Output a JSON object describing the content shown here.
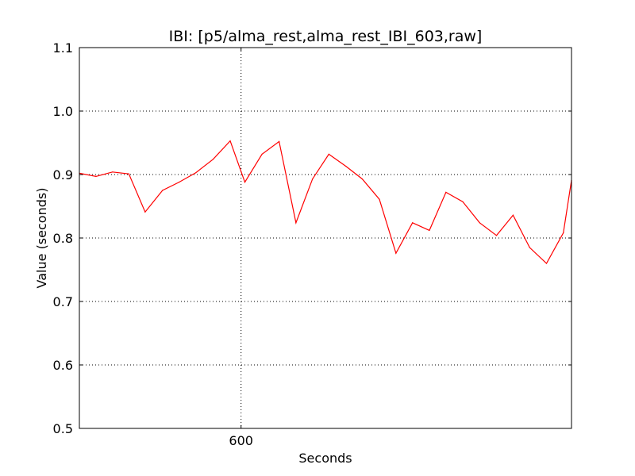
{
  "chart_data": {
    "type": "line",
    "title": "IBI: [p5/alma_rest,alma_rest_IBI_603,raw]",
    "xlabel": "Seconds",
    "ylabel": "Value (seconds)",
    "xlim": [
      594.05,
      612.16
    ],
    "ylim": [
      0.5,
      1.1
    ],
    "grid": true,
    "line_color": "#ff0000",
    "x_ticks": [
      {
        "value": 600,
        "label": "600"
      }
    ],
    "y_ticks": [
      {
        "value": 0.5,
        "label": "0.5"
      },
      {
        "value": 0.6,
        "label": "0.6"
      },
      {
        "value": 0.7,
        "label": "0.7"
      },
      {
        "value": 0.8,
        "label": "0.8"
      },
      {
        "value": 0.9,
        "label": "0.9"
      },
      {
        "value": 1.0,
        "label": "1.0"
      },
      {
        "value": 1.1,
        "label": "1.1"
      }
    ],
    "series": [
      {
        "x": [
          594.05,
          594.66,
          595.27,
          595.87,
          596.47,
          597.11,
          597.72,
          598.34,
          598.97,
          599.6,
          600.14,
          600.77,
          601.4,
          602.02,
          602.63,
          603.23,
          603.86,
          604.46,
          605.09,
          605.7,
          606.31,
          606.93,
          607.54,
          608.16,
          608.78,
          609.4,
          610.01,
          610.62,
          611.24,
          611.86,
          612.16
        ],
        "y": [
          0.902,
          0.897,
          0.904,
          0.901,
          0.841,
          0.875,
          0.888,
          0.903,
          0.924,
          0.953,
          0.888,
          0.932,
          0.952,
          0.824,
          0.893,
          0.932,
          0.913,
          0.893,
          0.861,
          0.776,
          0.824,
          0.812,
          0.872,
          0.857,
          0.824,
          0.804,
          0.836,
          0.785,
          0.76,
          0.808,
          0.891
        ]
      }
    ]
  }
}
